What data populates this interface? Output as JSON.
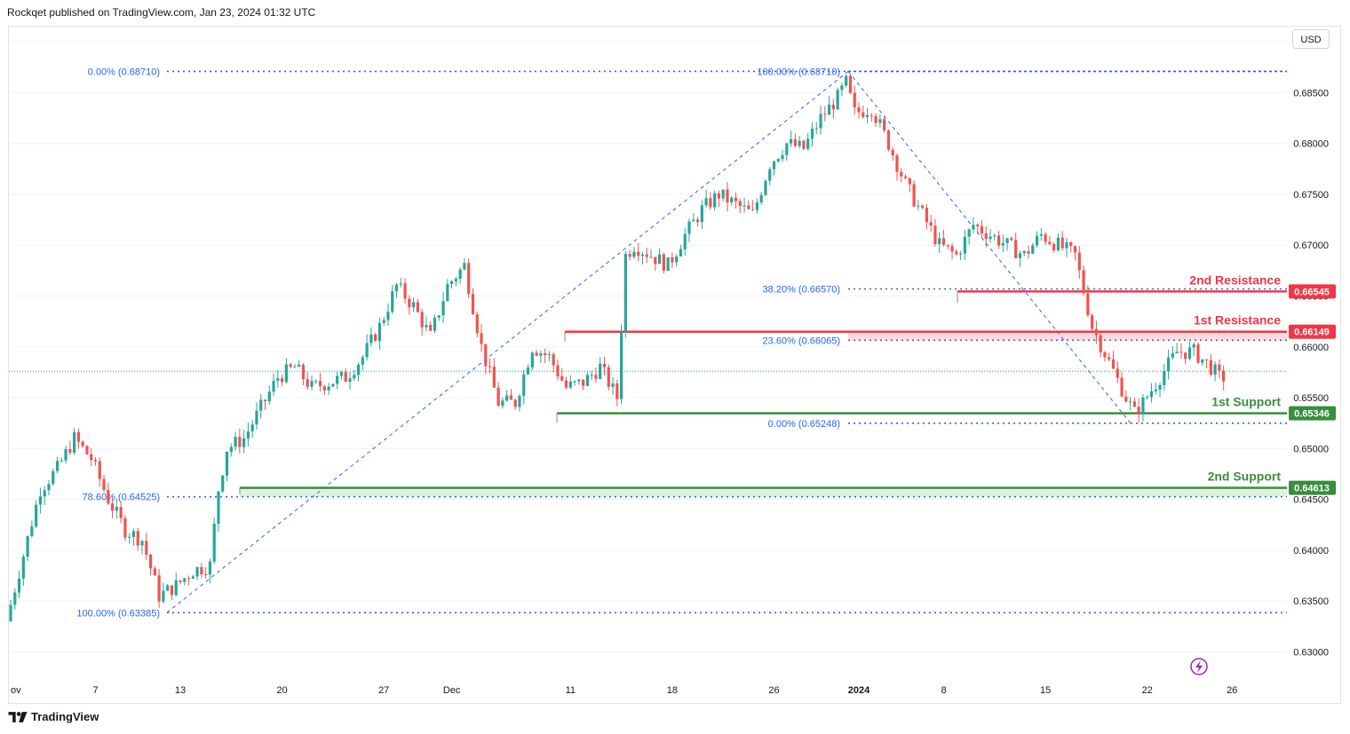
{
  "header": {
    "attribution": "Rockqet published on TradingView.com, Jan 23, 2024 01:32 UTC"
  },
  "currency": "USD",
  "footer": {
    "brand": "TradingView"
  },
  "colors": {
    "up": "#26a69a",
    "down": "#ef5350",
    "fib": "#2962ff",
    "resistance": "#f23645",
    "support": "#388e3c",
    "grid": "#e6e9ef"
  },
  "icons": {
    "logo": "tradingview-logo-icon",
    "alert": "lightning-icon"
  },
  "chart_data": {
    "type": "candlestick",
    "symbol_unit": "USD",
    "ylim": [
      0.6275,
      0.6915
    ],
    "y_ticks": [
      "0.69000",
      "0.68500",
      "0.68000",
      "0.67500",
      "0.67000",
      "0.66500",
      "0.66000",
      "0.65500",
      "0.65000",
      "0.64500",
      "0.64000",
      "0.63500",
      "0.63000"
    ],
    "x_ticks": [
      "ov",
      "7",
      "13",
      "20",
      "27",
      "Dec",
      "11",
      "18",
      "26",
      "2024",
      "8",
      "15",
      "22",
      "26"
    ],
    "x_tick_positions_days": [
      0,
      5,
      10,
      16,
      22,
      26,
      33,
      39,
      45,
      50,
      55,
      61,
      67,
      72
    ],
    "last_close_line": 0.6576,
    "levels": [
      {
        "name": "2nd Resistance",
        "value": 0.66545,
        "label": "0.66545",
        "type": "resistance"
      },
      {
        "name": "1st Resistance",
        "value": 0.66149,
        "label": "0.66149",
        "type": "resistance"
      },
      {
        "name": "1st Support",
        "value": 0.65346,
        "label": "0.65346",
        "type": "support"
      },
      {
        "name": "2nd Support",
        "value": 0.64613,
        "label": "0.64613",
        "type": "support"
      }
    ],
    "fib_levels": [
      {
        "label": "0.00% (0.68710)",
        "value": 0.6871
      },
      {
        "label": "78.60% (0.64525)",
        "value": 0.64525
      },
      {
        "label": "100.00% (0.63385)",
        "value": 0.63385
      },
      {
        "label": "100.00% (0.68710)",
        "value": 0.6871
      },
      {
        "label": "38.20% (0.66570)",
        "value": 0.6657
      },
      {
        "label": "23.60% (0.66065)",
        "value": 0.66065
      },
      {
        "label": "0.00% (0.65248)",
        "value": 0.65248
      }
    ],
    "anchor_points": [
      [
        0,
        0.633
      ],
      [
        2,
        0.646
      ],
      [
        3,
        0.648
      ],
      [
        4,
        0.651
      ],
      [
        5,
        0.649
      ],
      [
        6,
        0.645
      ],
      [
        7,
        0.642
      ],
      [
        8,
        0.641
      ],
      [
        9,
        0.6355
      ],
      [
        10,
        0.6365
      ],
      [
        11,
        0.638
      ],
      [
        12,
        0.6385
      ],
      [
        12.5,
        0.646
      ],
      [
        13,
        0.65
      ],
      [
        14,
        0.651
      ],
      [
        15,
        0.654
      ],
      [
        16,
        0.657
      ],
      [
        17,
        0.658
      ],
      [
        18,
        0.656
      ],
      [
        19,
        0.6565
      ],
      [
        20,
        0.657
      ],
      [
        21,
        0.659
      ],
      [
        22,
        0.662
      ],
      [
        23,
        0.666
      ],
      [
        24,
        0.664
      ],
      [
        25,
        0.661
      ],
      [
        26,
        0.666
      ],
      [
        27,
        0.668
      ],
      [
        28,
        0.66
      ],
      [
        29,
        0.6545
      ],
      [
        30,
        0.6545
      ],
      [
        31,
        0.66
      ],
      [
        32,
        0.659
      ],
      [
        33,
        0.656
      ],
      [
        34,
        0.6565
      ],
      [
        35,
        0.658
      ],
      [
        36,
        0.655
      ],
      [
        36.5,
        0.669
      ],
      [
        37,
        0.67
      ],
      [
        38,
        0.669
      ],
      [
        39,
        0.668
      ],
      [
        40,
        0.671
      ],
      [
        41,
        0.6735
      ],
      [
        42,
        0.675
      ],
      [
        43,
        0.674
      ],
      [
        44,
        0.673
      ],
      [
        45,
        0.678
      ],
      [
        46,
        0.68
      ],
      [
        47,
        0.6795
      ],
      [
        48,
        0.6825
      ],
      [
        49,
        0.6845
      ],
      [
        49.5,
        0.686
      ],
      [
        50,
        0.683
      ],
      [
        51,
        0.6835
      ],
      [
        52,
        0.68
      ],
      [
        53,
        0.676
      ],
      [
        54,
        0.673
      ],
      [
        55,
        0.67
      ],
      [
        56,
        0.669
      ],
      [
        57,
        0.672
      ],
      [
        58,
        0.671
      ],
      [
        59,
        0.67
      ],
      [
        60,
        0.669
      ],
      [
        61,
        0.671
      ],
      [
        62,
        0.67
      ],
      [
        63,
        0.669
      ],
      [
        63.5,
        0.6655
      ],
      [
        64,
        0.662
      ],
      [
        65,
        0.6585
      ],
      [
        66,
        0.655
      ],
      [
        66.5,
        0.6535
      ],
      [
        67,
        0.6545
      ],
      [
        68,
        0.657
      ],
      [
        69,
        0.6595
      ],
      [
        70,
        0.6595
      ],
      [
        71,
        0.658
      ],
      [
        71.5,
        0.657
      ]
    ]
  }
}
